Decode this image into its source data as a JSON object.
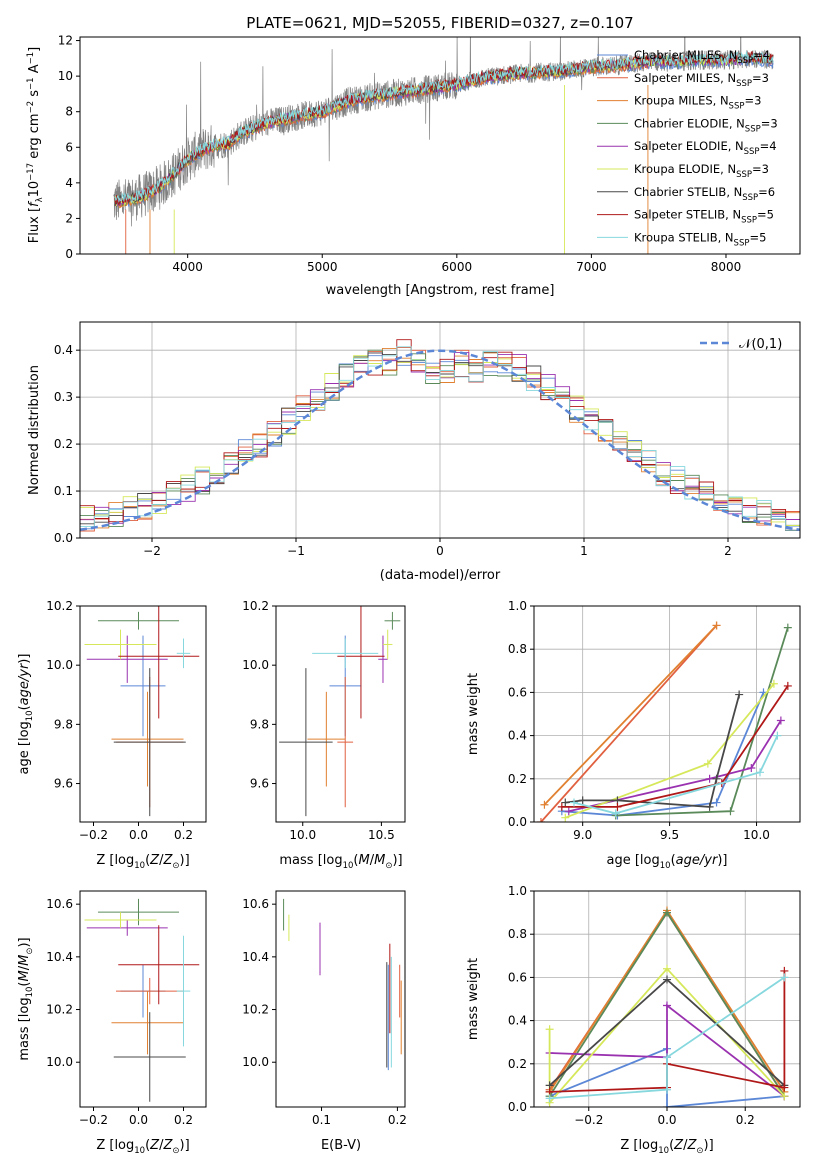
{
  "figure": {
    "title": "PLATE=0621, MJD=52055, FIBERID=0327, z=0.107"
  },
  "colors": {
    "Chabrier MILES": "#5b87d6",
    "Salpeter MILES": "#e06040",
    "Kroupa MILES": "#e08030",
    "Chabrier ELODIE": "#5a8a5a",
    "Salpeter ELODIE": "#9a32b0",
    "Kroupa ELODIE": "#d6e85a",
    "Chabrier STELIB": "#484848",
    "Salpeter STELIB": "#b01818",
    "Kroupa STELIB": "#86d8de",
    "data": "#808080",
    "normal": "#5b87d6"
  },
  "chart_data": [
    {
      "type": "line",
      "title": "PLATE=0621, MJD=52055, FIBERID=0327, z=0.107",
      "xlabel": "wavelength [Angstrom, rest frame]",
      "ylabel": "Flux [fλ10⁻¹⁷ erg cm⁻² s⁻¹ A⁻¹]",
      "xlim": [
        3200,
        8550
      ],
      "ylim": [
        0,
        12.2
      ],
      "xticks": [
        4000,
        5000,
        6000,
        7000,
        8000
      ],
      "yticks": [
        0,
        2,
        4,
        6,
        8,
        10,
        12
      ],
      "legend_position": "top-right",
      "legend": [
        {
          "series": "Chabrier MILES",
          "label": "Chabrier MILES, N",
          "sub": "SSP",
          "tail": "=4"
        },
        {
          "series": "Salpeter MILES",
          "label": "Salpeter MILES, N",
          "sub": "SSP",
          "tail": "=3"
        },
        {
          "series": "Kroupa MILES",
          "label": "Kroupa MILES, N",
          "sub": "SSP",
          "tail": "=3"
        },
        {
          "series": "Chabrier ELODIE",
          "label": "Chabrier ELODIE, N",
          "sub": "SSP",
          "tail": "=3"
        },
        {
          "series": "Salpeter ELODIE",
          "label": "Salpeter ELODIE, N",
          "sub": "SSP",
          "tail": "=4"
        },
        {
          "series": "Kroupa ELODIE",
          "label": "Kroupa ELODIE, N",
          "sub": "SSP",
          "tail": "=3"
        },
        {
          "series": "Chabrier STELIB",
          "label": "Chabrier STELIB, N",
          "sub": "SSP",
          "tail": "=6"
        },
        {
          "series": "Salpeter STELIB",
          "label": "Salpeter STELIB, N",
          "sub": "SSP",
          "tail": "=5"
        },
        {
          "series": "Kroupa STELIB",
          "label": "Kroupa STELIB, N",
          "sub": "SSP",
          "tail": "=5"
        }
      ],
      "spectrum_continuum": {
        "wavelength": [
          3450,
          3600,
          3700,
          3800,
          3900,
          4000,
          4100,
          4200,
          4300,
          4400,
          4500,
          4600,
          4800,
          5000,
          5200,
          5400,
          5600,
          5800,
          6000,
          6200,
          6400,
          6600,
          6800,
          7000,
          7200,
          7400,
          7600,
          7800,
          8000,
          8200,
          8350
        ],
        "flux": [
          2.9,
          3.1,
          3.4,
          3.8,
          4.5,
          5.3,
          5.8,
          6.1,
          6.2,
          6.8,
          7.1,
          7.4,
          7.7,
          8.0,
          8.6,
          8.9,
          9.1,
          9.3,
          9.5,
          9.9,
          10.1,
          10.2,
          10.3,
          10.5,
          10.6,
          10.8,
          10.8,
          10.9,
          10.9,
          11.0,
          10.9
        ]
      }
    },
    {
      "type": "bar",
      "xlabel": "(data-model)/error",
      "ylabel": "Normed distribution",
      "xlim": [
        -2.5,
        2.5
      ],
      "ylim": [
        0,
        0.46
      ],
      "xticks": [
        -2,
        -1,
        0,
        1,
        2
      ],
      "yticks": [
        0.0,
        0.1,
        0.2,
        0.3,
        0.4
      ],
      "grid": true,
      "legend": "𝒩(0,1)",
      "bin_width": 0.1,
      "bin_start": -2.5,
      "reference_curve": "normal pdf, mean 0, sigma 1"
    },
    {
      "type": "scatter",
      "xlabel": "Z [log₁₀(Z/Z⊙)]",
      "ylabel": "age  [log₁₀(age/yr)]",
      "xlim": [
        -0.26,
        0.3
      ],
      "ylim": [
        9.47,
        10.2
      ],
      "xticks": [
        -0.2,
        0.0,
        0.2
      ],
      "yticks": [
        9.6,
        9.8,
        10.0,
        10.2
      ],
      "points": [
        {
          "series": "Chabrier MILES",
          "x": 0.02,
          "xerr": 0.1,
          "y": 9.93,
          "yerr": 0.17
        },
        {
          "series": "Salpeter MILES",
          "x": 0.05,
          "xerr": 0.15,
          "y": 9.74,
          "yerr": 0.22
        },
        {
          "series": "Kroupa MILES",
          "x": 0.04,
          "xerr": 0.16,
          "y": 9.75,
          "yerr": 0.16
        },
        {
          "series": "Chabrier ELODIE",
          "x": 0.0,
          "xerr": 0.18,
          "y": 10.15,
          "yerr": 0.03
        },
        {
          "series": "Salpeter ELODIE",
          "x": -0.05,
          "xerr": 0.18,
          "y": 10.02,
          "yerr": 0.08
        },
        {
          "series": "Kroupa ELODIE",
          "x": -0.08,
          "xerr": 0.16,
          "y": 10.07,
          "yerr": 0.05
        },
        {
          "series": "Chabrier STELIB",
          "x": 0.05,
          "xerr": 0.16,
          "y": 9.74,
          "yerr": 0.25
        },
        {
          "series": "Salpeter STELIB",
          "x": 0.09,
          "xerr": 0.18,
          "y": 10.03,
          "yerr": 0.21
        },
        {
          "series": "Kroupa STELIB",
          "x": 0.2,
          "xerr": 0.03,
          "y": 10.04,
          "yerr": 0.05
        }
      ]
    },
    {
      "type": "scatter",
      "xlabel": "mass [log₁₀(M/M⊙)]",
      "xlim": [
        9.83,
        10.65
      ],
      "ylim": [
        9.47,
        10.2
      ],
      "xticks": [
        10.0,
        10.5
      ],
      "yticks": [
        9.6,
        9.8,
        10.0,
        10.2
      ],
      "points": [
        {
          "series": "Chabrier MILES",
          "x": 10.27,
          "xerr": 0.1,
          "y": 9.93,
          "yerr": 0.17
        },
        {
          "series": "Salpeter MILES",
          "x": 10.27,
          "xerr": 0.05,
          "y": 9.74,
          "yerr": 0.22
        },
        {
          "series": "Kroupa MILES",
          "x": 10.15,
          "xerr": 0.12,
          "y": 9.75,
          "yerr": 0.16
        },
        {
          "series": "Chabrier ELODIE",
          "x": 10.57,
          "xerr": 0.05,
          "y": 10.15,
          "yerr": 0.03
        },
        {
          "series": "Salpeter ELODIE",
          "x": 10.51,
          "xerr": 0.03,
          "y": 10.02,
          "yerr": 0.08
        },
        {
          "series": "Kroupa ELODIE",
          "x": 10.54,
          "xerr": 0.03,
          "y": 10.07,
          "yerr": 0.05
        },
        {
          "series": "Chabrier STELIB",
          "x": 10.02,
          "xerr": 0.17,
          "y": 9.74,
          "yerr": 0.25
        },
        {
          "series": "Salpeter STELIB",
          "x": 10.37,
          "xerr": 0.15,
          "y": 10.03,
          "yerr": 0.21
        },
        {
          "series": "Kroupa STELIB",
          "x": 10.27,
          "xerr": 0.21,
          "y": 10.04,
          "yerr": 0.05
        }
      ]
    },
    {
      "type": "line",
      "xlabel": "age  [log₁₀(age/yr)]",
      "ylabel": "mass weight",
      "xlim": [
        8.72,
        10.25
      ],
      "ylim": [
        0,
        1.0
      ],
      "xticks": [
        9.0,
        9.5,
        10.0
      ],
      "yticks": [
        0.0,
        0.2,
        0.4,
        0.6,
        0.8,
        1.0
      ],
      "grid": true,
      "series": [
        {
          "name": "Chabrier MILES",
          "x": [
            8.88,
            9.2,
            9.77,
            10.04
          ],
          "y": [
            0.05,
            0.03,
            0.09,
            0.6
          ]
        },
        {
          "name": "Salpeter MILES",
          "x": [
            8.76,
            9.77
          ],
          "y": [
            0.0,
            0.91
          ]
        },
        {
          "name": "Kroupa MILES",
          "x": [
            8.78,
            9.77
          ],
          "y": [
            0.08,
            0.91
          ]
        },
        {
          "name": "Chabrier ELODIE",
          "x": [
            9.19,
            9.85,
            10.18
          ],
          "y": [
            0.03,
            0.05,
            0.9
          ]
        },
        {
          "name": "Salpeter ELODIE",
          "x": [
            8.92,
            9.73,
            9.97,
            10.14
          ],
          "y": [
            0.05,
            0.2,
            0.25,
            0.47
          ]
        },
        {
          "name": "Kroupa ELODIE",
          "x": [
            8.9,
            9.72,
            10.1
          ],
          "y": [
            0.02,
            0.27,
            0.64
          ]
        },
        {
          "name": "Chabrier STELIB",
          "x": [
            8.9,
            9.0,
            9.2,
            9.73,
            9.77,
            9.9
          ],
          "y": [
            0.09,
            0.1,
            0.1,
            0.07,
            0.2,
            0.59
          ]
        },
        {
          "name": "Salpeter STELIB",
          "x": [
            8.88,
            9.2,
            9.8,
            10.18
          ],
          "y": [
            0.07,
            0.07,
            0.18,
            0.63
          ]
        },
        {
          "name": "Kroupa STELIB",
          "x": [
            8.95,
            9.19,
            10.02,
            10.12
          ],
          "y": [
            0.09,
            0.04,
            0.23,
            0.4
          ]
        }
      ]
    },
    {
      "type": "scatter",
      "xlabel": "Z [log₁₀(Z/Z⊙)]",
      "ylabel": "mass [log₁₀(M/M⊙)]",
      "xlim": [
        -0.26,
        0.3
      ],
      "ylim": [
        9.83,
        10.65
      ],
      "xticks": [
        -0.2,
        0.0,
        0.2
      ],
      "yticks": [
        10.0,
        10.2,
        10.4,
        10.6
      ],
      "points": [
        {
          "series": "Chabrier MILES",
          "x": 0.02,
          "xerr": 0.1,
          "y": 10.27,
          "yerr": 0.1
        },
        {
          "series": "Salpeter MILES",
          "x": 0.05,
          "xerr": 0.15,
          "y": 10.27,
          "yerr": 0.05
        },
        {
          "series": "Kroupa MILES",
          "x": 0.04,
          "xerr": 0.16,
          "y": 10.15,
          "yerr": 0.12
        },
        {
          "series": "Chabrier ELODIE",
          "x": 0.0,
          "xerr": 0.18,
          "y": 10.57,
          "yerr": 0.05
        },
        {
          "series": "Salpeter ELODIE",
          "x": -0.05,
          "xerr": 0.18,
          "y": 10.51,
          "yerr": 0.03
        },
        {
          "series": "Kroupa ELODIE",
          "x": -0.08,
          "xerr": 0.16,
          "y": 10.54,
          "yerr": 0.03
        },
        {
          "series": "Chabrier STELIB",
          "x": 0.05,
          "xerr": 0.16,
          "y": 10.02,
          "yerr": 0.17
        },
        {
          "series": "Salpeter STELIB",
          "x": 0.09,
          "xerr": 0.18,
          "y": 10.37,
          "yerr": 0.15
        },
        {
          "series": "Kroupa STELIB",
          "x": 0.2,
          "xerr": 0.03,
          "y": 10.27,
          "yerr": 0.21
        }
      ]
    },
    {
      "type": "scatter",
      "xlabel": "E(B-V)",
      "xlim": [
        0.04,
        0.21
      ],
      "ylim": [
        9.83,
        10.65
      ],
      "xticks": [
        0.1,
        0.2
      ],
      "yticks": [
        10.0,
        10.2,
        10.4,
        10.6
      ],
      "points": [
        {
          "series": "Chabrier MILES",
          "x": 0.188,
          "y": 10.17,
          "yerr": 0.2
        },
        {
          "series": "Salpeter MILES",
          "x": 0.203,
          "y": 10.27,
          "yerr": 0.1
        },
        {
          "series": "Kroupa MILES",
          "x": 0.205,
          "y": 10.17,
          "yerr": 0.14
        },
        {
          "series": "Chabrier ELODIE",
          "x": 0.05,
          "y": 10.56,
          "yerr": 0.06
        },
        {
          "series": "Salpeter ELODIE",
          "x": 0.098,
          "y": 10.43,
          "yerr": 0.1
        },
        {
          "series": "Kroupa ELODIE",
          "x": 0.057,
          "y": 10.51,
          "yerr": 0.05
        },
        {
          "series": "Chabrier STELIB",
          "x": 0.186,
          "y": 10.18,
          "yerr": 0.2
        },
        {
          "series": "Salpeter STELIB",
          "x": 0.19,
          "y": 10.28,
          "yerr": 0.17
        },
        {
          "series": "Kroupa STELIB",
          "x": 0.192,
          "y": 10.19,
          "yerr": 0.21
        }
      ]
    },
    {
      "type": "line",
      "xlabel": "Z [log₁₀(Z/Z⊙)]",
      "ylabel": "mass weight",
      "xlim": [
        -0.34,
        0.34
      ],
      "ylim": [
        0,
        1.0
      ],
      "xticks": [
        -0.2,
        0.0,
        0.2
      ],
      "yticks": [
        0.0,
        0.2,
        0.4,
        0.6,
        0.8,
        1.0
      ],
      "grid": true,
      "series": [
        {
          "name": "Chabrier MILES",
          "x": [
            -0.3,
            0.0,
            0.0,
            0.3
          ],
          "y": [
            0.05,
            0.27,
            0.0,
            0.05
          ]
        },
        {
          "name": "Salpeter MILES",
          "x": [
            -0.3,
            0.0,
            0.3
          ],
          "y": [
            0.08,
            0.9,
            0.05
          ]
        },
        {
          "name": "Kroupa MILES",
          "x": [
            -0.3,
            0.0,
            0.3
          ],
          "y": [
            0.07,
            0.91,
            0.07
          ]
        },
        {
          "name": "Chabrier ELODIE",
          "x": [
            -0.3,
            0.0,
            0.3
          ],
          "y": [
            0.05,
            0.9,
            0.05
          ]
        },
        {
          "name": "Salpeter ELODIE",
          "x": [
            -0.3,
            0.0,
            0.0,
            0.3
          ],
          "y": [
            0.25,
            0.23,
            0.47,
            0.05
          ]
        },
        {
          "name": "Kroupa ELODIE",
          "x": [
            -0.3,
            -0.3,
            0.0,
            0.3
          ],
          "y": [
            0.36,
            0.02,
            0.64,
            0.05
          ]
        },
        {
          "name": "Chabrier STELIB",
          "x": [
            -0.3,
            0.0,
            0.3
          ],
          "y": [
            0.1,
            0.59,
            0.1
          ]
        },
        {
          "name": "Salpeter STELIB",
          "x": [
            -0.3,
            0.0,
            0.0,
            0.3,
            0.3
          ],
          "y": [
            0.07,
            0.09,
            0.2,
            0.09,
            0.63
          ]
        },
        {
          "name": "Kroupa STELIB",
          "x": [
            -0.3,
            0.0,
            0.0,
            0.3
          ],
          "y": [
            0.04,
            0.08,
            0.23,
            0.6
          ]
        }
      ]
    }
  ]
}
